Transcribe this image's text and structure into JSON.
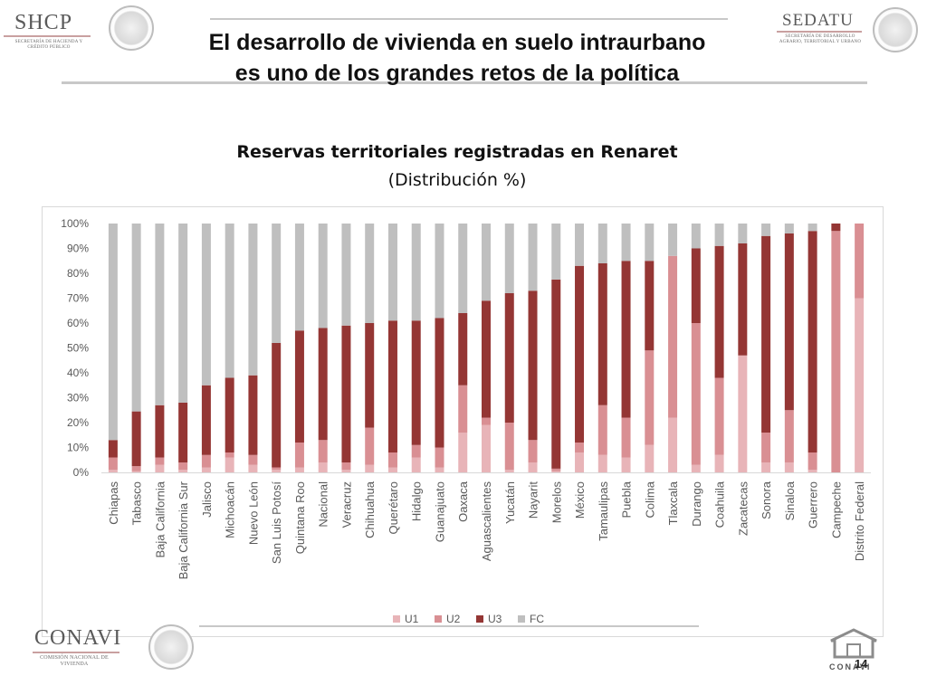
{
  "header": {
    "left_logo": {
      "name": "SHCP",
      "sub": "SECRETARÍA DE HACIENDA Y CRÉDITO PÚBLICO"
    },
    "right_logo": {
      "name": "SEDATU",
      "sub": "SECRETARÍA DE DESARROLLO AGRARIO, TERRITORIAL Y URBANO"
    }
  },
  "slide_title_line1": "El desarrollo de vivienda en suelo intraurbano",
  "slide_title_line2": "es uno de los grandes retos de la política",
  "footer": {
    "left_logo": {
      "name": "CONAVI",
      "sub": "COMISIÓN NACIONAL DE VIVIENDA"
    },
    "right_logo": {
      "name": "CONAVI"
    },
    "page_number": "14"
  },
  "colors": {
    "U1": "#e8b4b8",
    "U2": "#d98f93",
    "U3": "#943634",
    "FC": "#bfbfbf",
    "axis_text": "#595959"
  },
  "chart_data": {
    "type": "bar",
    "stacked": true,
    "title": "Reservas territoriales registradas en Renaret",
    "subtitle": "(Distribución %)",
    "ylim": [
      0,
      100
    ],
    "y_ticks": [
      "0%",
      "10%",
      "20%",
      "30%",
      "40%",
      "50%",
      "60%",
      "70%",
      "80%",
      "90%",
      "100%"
    ],
    "grid": false,
    "legend_position": "bottom",
    "categories": [
      "Chiapas",
      "Tabasco",
      "Baja California",
      "Baja California Sur",
      "Jalisco",
      "Michoacán",
      "Nuevo León",
      "San Luis Potosí",
      "Quintana Roo",
      "Nacional",
      "Veracruz",
      "Chihuahua",
      "Querétaro",
      "Hidalgo",
      "Guanajuato",
      "Oaxaca",
      "Aguascalientes",
      "Yucatán",
      "Nayarit",
      "Morelos",
      "México",
      "Tamaulipas",
      "Puebla",
      "Colima",
      "Tlaxcala",
      "Durango",
      "Coahuila",
      "Zacatecas",
      "Sonora",
      "Sinaloa",
      "Guerrero",
      "Campeche",
      "Distrito Federal"
    ],
    "series": [
      {
        "name": "U1",
        "values": [
          1,
          0.5,
          3,
          1,
          2,
          6,
          3,
          1,
          2,
          4,
          1,
          3,
          2,
          6,
          2,
          16,
          19,
          1,
          4,
          0.5,
          8,
          7,
          6,
          11,
          22,
          3,
          7,
          47,
          4,
          4,
          1,
          0,
          70
        ]
      },
      {
        "name": "U2",
        "values": [
          5,
          2,
          3,
          3,
          5,
          2,
          4,
          1,
          10,
          9,
          3,
          15,
          6,
          5,
          8,
          19,
          3,
          19,
          9,
          1,
          4,
          20,
          16,
          38,
          65,
          57,
          31,
          0,
          12,
          21,
          7,
          97,
          30
        ]
      },
      {
        "name": "U3",
        "values": [
          7,
          22,
          21,
          24,
          28,
          30,
          32,
          50,
          45,
          45,
          55,
          42,
          53,
          50,
          52,
          29,
          47,
          52,
          60,
          76,
          71,
          57,
          63,
          36,
          0,
          30,
          53,
          45,
          79,
          71,
          89,
          3,
          0
        ]
      },
      {
        "name": "FC",
        "values": [
          87,
          75.5,
          73,
          72,
          65,
          62,
          61,
          48,
          43,
          42,
          41,
          40,
          39,
          39,
          38,
          36,
          31,
          28,
          27,
          22.5,
          17,
          16,
          15,
          15,
          13,
          10,
          9,
          8,
          5,
          4,
          3,
          0,
          0
        ]
      }
    ]
  }
}
